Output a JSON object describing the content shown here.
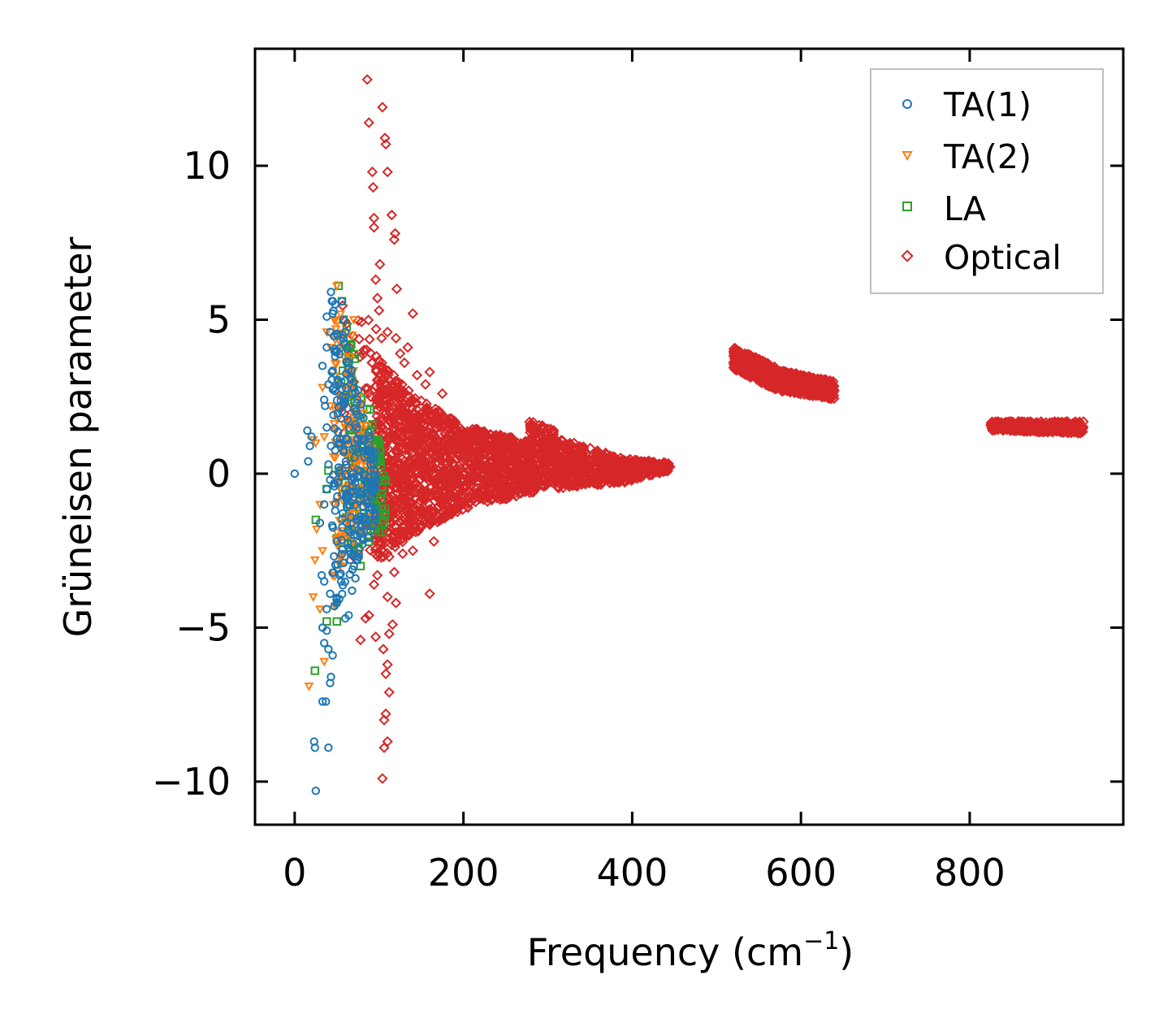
{
  "chart_data": {
    "type": "scatter",
    "title": "",
    "xlabel": "Frequency (cm",
    "xlabel_sup": "−1",
    "xlabel_close": ")",
    "ylabel": "Grüneisen parameter",
    "xlim": [
      -47,
      982
    ],
    "ylim": [
      -11.4,
      13.8
    ],
    "xticks": [
      0,
      200,
      400,
      600,
      800
    ],
    "xtick_labels": [
      "0",
      "200",
      "400",
      "600",
      "800"
    ],
    "yticks": [
      -10,
      -5,
      0,
      5,
      10
    ],
    "ytick_labels": [
      "−10",
      "−5",
      "0",
      "5",
      "10"
    ],
    "grid": false,
    "legend_position": "top-right",
    "legend": [
      "TA(1)",
      "TA(2)",
      "LA",
      "Optical"
    ],
    "series": [
      {
        "name": "TA(1)",
        "marker": "circle",
        "color": "#1f77b4",
        "points": [
          [
            0,
            0
          ],
          [
            15,
            1.4
          ],
          [
            18,
            0.9
          ],
          [
            16,
            0.4
          ],
          [
            20,
            1.2
          ],
          [
            25,
            -10.3
          ],
          [
            23,
            -8.7
          ],
          [
            24,
            -8.9
          ],
          [
            40,
            -8.9
          ],
          [
            33,
            -7.4
          ],
          [
            37,
            -7.4
          ],
          [
            42,
            -6.8
          ],
          [
            43,
            -6.6
          ],
          [
            35,
            -5.5
          ],
          [
            40,
            -5.7
          ],
          [
            45,
            -5.9
          ],
          [
            38,
            -5.1
          ],
          [
            33,
            -5.0
          ],
          [
            32,
            -3.3
          ],
          [
            35,
            -3.5
          ],
          [
            42,
            -3.9
          ],
          [
            38,
            -4.4
          ],
          [
            47,
            -4.3
          ],
          [
            30,
            -1.6
          ],
          [
            35,
            -1.0
          ],
          [
            38,
            -0.5
          ],
          [
            42,
            -0.2
          ],
          [
            40,
            0.3
          ],
          [
            43,
            0.9
          ],
          [
            38,
            1.5
          ],
          [
            36,
            2.2
          ],
          [
            35,
            2.4
          ],
          [
            40,
            2.9
          ],
          [
            33,
            3.5
          ],
          [
            38,
            4.1
          ],
          [
            42,
            4.6
          ],
          [
            45,
            5.2
          ],
          [
            38,
            5.1
          ],
          [
            48,
            5.5
          ],
          [
            43,
            5.9
          ],
          [
            50,
            4.0
          ],
          [
            52,
            3.0
          ],
          [
            55,
            1.8
          ],
          [
            58,
            0.7
          ],
          [
            60,
            -0.5
          ],
          [
            62,
            -1.6
          ],
          [
            64,
            -2.4
          ],
          [
            66,
            -2.8
          ],
          [
            70,
            -3.0
          ],
          [
            74,
            -2.0
          ],
          [
            78,
            -1.4
          ],
          [
            82,
            -0.8
          ],
          [
            86,
            -0.3
          ],
          [
            90,
            0.1
          ],
          [
            94,
            0.5
          ],
          [
            96,
            -0.2
          ],
          [
            92,
            -0.6
          ],
          [
            88,
            -1.1
          ],
          [
            84,
            -1.5
          ],
          [
            80,
            -2.1
          ],
          [
            76,
            -2.6
          ],
          [
            72,
            -3.4
          ],
          [
            68,
            -3.8
          ],
          [
            64,
            -4.6
          ],
          [
            60,
            -4.7
          ],
          [
            56,
            5.6
          ],
          [
            58,
            5.0
          ],
          [
            60,
            4.6
          ],
          [
            62,
            4.1
          ],
          [
            64,
            3.6
          ],
          [
            66,
            3.1
          ],
          [
            68,
            2.6
          ],
          [
            70,
            2.1
          ],
          [
            72,
            1.6
          ],
          [
            74,
            1.1
          ],
          [
            55,
            -3.5
          ],
          [
            58,
            -2.9
          ],
          [
            50,
            -2.2
          ],
          [
            48,
            -1.2
          ],
          [
            52,
            0.2
          ],
          [
            54,
            1.0
          ],
          [
            46,
            1.9
          ],
          [
            44,
            3.3
          ]
        ],
        "clusters": [
          {
            "x": [
              44,
              96
            ],
            "y_top": [
              6.0,
              0.6
            ],
            "y_bot": [
              -4.8,
              -1.6
            ],
            "n": 220
          }
        ]
      },
      {
        "name": "TA(2)",
        "marker": "triangle-down",
        "color": "#ff7f0e",
        "points": [
          [
            17,
            -6.9
          ],
          [
            35,
            -6.1
          ],
          [
            22,
            -4.0
          ],
          [
            30,
            -4.4
          ],
          [
            48,
            -4.3
          ],
          [
            24,
            -2.8
          ],
          [
            33,
            -2.5
          ],
          [
            45,
            -3.3
          ],
          [
            26,
            -1.8
          ],
          [
            30,
            -1.0
          ],
          [
            25,
            1.0
          ],
          [
            22,
            1.1
          ],
          [
            35,
            1.2
          ],
          [
            42,
            2.2
          ],
          [
            33,
            2.8
          ],
          [
            43,
            4.1
          ],
          [
            38,
            4.6
          ],
          [
            48,
            5.0
          ],
          [
            50,
            6.1
          ],
          [
            55,
            4.2
          ],
          [
            52,
            -0.4
          ],
          [
            56,
            0.2
          ],
          [
            58,
            0.9
          ],
          [
            60,
            1.5
          ],
          [
            62,
            2.4
          ],
          [
            64,
            3.3
          ],
          [
            66,
            3.8
          ],
          [
            68,
            4.5
          ],
          [
            70,
            5.0
          ],
          [
            72,
            1.0
          ],
          [
            74,
            0.4
          ],
          [
            70,
            -0.6
          ],
          [
            66,
            -1.3
          ],
          [
            62,
            -2.0
          ],
          [
            58,
            -2.6
          ],
          [
            54,
            -3.0
          ],
          [
            50,
            -1.9
          ],
          [
            46,
            -1.0
          ]
        ],
        "clusters": [
          {
            "x": [
              46,
              92
            ],
            "y_top": [
              6.2,
              1.0
            ],
            "y_bot": [
              -3.6,
              -1.4
            ],
            "n": 120
          }
        ]
      },
      {
        "name": "LA",
        "marker": "square",
        "color": "#2ca02c",
        "points": [
          [
            24,
            -6.4
          ],
          [
            38,
            -4.8
          ],
          [
            50,
            -4.8
          ],
          [
            25,
            -1.5
          ],
          [
            38,
            -0.5
          ],
          [
            40,
            0.1
          ],
          [
            52,
            6.1
          ],
          [
            50,
            -2.1
          ],
          [
            86,
            2.1
          ],
          [
            92,
            1.6
          ],
          [
            95,
            1.0
          ],
          [
            98,
            0.4
          ],
          [
            100,
            -0.2
          ],
          [
            102,
            -0.8
          ],
          [
            104,
            -1.3
          ],
          [
            106,
            -1.6
          ],
          [
            100,
            -1.9
          ],
          [
            96,
            -1.4
          ],
          [
            90,
            -0.7
          ],
          [
            84,
            -0.1
          ],
          [
            80,
            0.6
          ],
          [
            76,
            1.3
          ],
          [
            72,
            2.1
          ],
          [
            68,
            2.8
          ],
          [
            64,
            3.5
          ],
          [
            60,
            4.2
          ],
          [
            58,
            5.0
          ],
          [
            56,
            5.6
          ],
          [
            70,
            -2.4
          ],
          [
            74,
            -2.8
          ],
          [
            78,
            -3.0
          ],
          [
            66,
            -1.8
          ],
          [
            62,
            -1.0
          ],
          [
            60,
            -0.3
          ]
        ],
        "clusters": [
          {
            "x": [
              52,
              108
            ],
            "y_top": [
              6.1,
              0.2
            ],
            "y_bot": [
              -3.0,
              -2.0
            ],
            "n": 110
          }
        ]
      },
      {
        "name": "Optical",
        "marker": "diamond",
        "color": "#d62728",
        "points": [
          [
            86,
            12.8
          ],
          [
            104,
            11.9
          ],
          [
            88,
            11.4
          ],
          [
            107,
            10.9
          ],
          [
            108,
            10.7
          ],
          [
            110,
            9.8
          ],
          [
            92,
            9.8
          ],
          [
            93,
            9.3
          ],
          [
            94,
            8.3
          ],
          [
            115,
            8.4
          ],
          [
            94,
            8.0
          ],
          [
            119,
            7.8
          ],
          [
            118,
            7.6
          ],
          [
            101,
            6.8
          ],
          [
            96,
            6.3
          ],
          [
            121,
            6.0
          ],
          [
            98,
            5.7
          ],
          [
            100,
            5.3
          ],
          [
            140,
            5.2
          ],
          [
            103,
            4.4
          ],
          [
            110,
            4.6
          ],
          [
            120,
            4.4
          ],
          [
            134,
            4.1
          ],
          [
            125,
            3.9
          ],
          [
            130,
            3.6
          ],
          [
            145,
            3.2
          ],
          [
            160,
            3.3
          ],
          [
            175,
            2.6
          ],
          [
            155,
            2.9
          ],
          [
            112,
            -2.7
          ],
          [
            118,
            -3.2
          ],
          [
            128,
            -2.6
          ],
          [
            140,
            -2.5
          ],
          [
            165,
            -2.2
          ],
          [
            160,
            -3.9
          ],
          [
            110,
            -4.0
          ],
          [
            120,
            -4.2
          ],
          [
            116,
            -4.9
          ],
          [
            112,
            -5.2
          ],
          [
            105,
            -5.7
          ],
          [
            110,
            -6.2
          ],
          [
            108,
            -6.5
          ],
          [
            112,
            -7.1
          ],
          [
            108,
            -7.8
          ],
          [
            106,
            -8.0
          ],
          [
            110,
            -8.7
          ],
          [
            106,
            -8.9
          ],
          [
            104,
            -9.9
          ],
          [
            96,
            -5.3
          ],
          [
            78,
            -5.4
          ],
          [
            88,
            -4.6
          ],
          [
            84,
            -4.7
          ],
          [
            94,
            -3.6
          ],
          [
            98,
            -3.3
          ]
        ],
        "clusters": [
          {
            "x": [
              52,
              108
            ],
            "y_top": [
              6.3,
              4.4
            ],
            "y_bot": [
              -3.0,
              -2.4
            ],
            "n": 80
          },
          {
            "x": [
              95,
              140
            ],
            "y_top": [
              4.0,
              2.6
            ],
            "y_bot": [
              -3.0,
              -2.0
            ],
            "n": 500
          },
          {
            "x": [
              140,
              200
            ],
            "y_top": [
              2.6,
              1.6
            ],
            "y_bot": [
              -2.0,
              -1.2
            ],
            "n": 500
          },
          {
            "x": [
              200,
              285
            ],
            "y_top": [
              1.6,
              1.0
            ],
            "y_bot": [
              -1.2,
              -0.6
            ],
            "n": 550
          },
          {
            "x": [
              275,
              310
            ],
            "y_top": [
              1.8,
              1.4
            ],
            "y_bot": [
              -0.6,
              -0.4
            ],
            "n": 200
          },
          {
            "x": [
              310,
              390
            ],
            "y_top": [
              1.2,
              0.5
            ],
            "y_bot": [
              -0.5,
              -0.3
            ],
            "n": 350
          },
          {
            "x": [
              390,
              445
            ],
            "y_top": [
              0.5,
              0.35
            ],
            "y_bot": [
              -0.3,
              0.1
            ],
            "n": 200
          },
          {
            "x": [
              520,
              570
            ],
            "y_top": [
              4.1,
              3.5
            ],
            "y_bot": [
              3.4,
              2.7
            ],
            "n": 400
          },
          {
            "x": [
              570,
              640
            ],
            "y_top": [
              3.4,
              3.0
            ],
            "y_bot": [
              2.7,
              2.4
            ],
            "n": 450
          },
          {
            "x": [
              825,
              935
            ],
            "y_top": [
              1.7,
              1.7
            ],
            "y_bot": [
              1.4,
              1.3
            ],
            "n": 550
          }
        ]
      }
    ]
  }
}
